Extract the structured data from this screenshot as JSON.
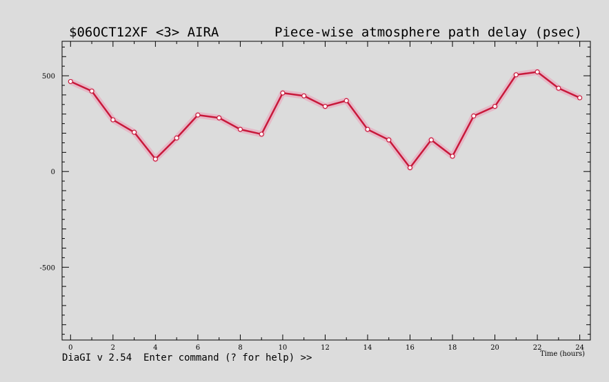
{
  "header": {
    "experiment": "$06OCT12XF <3>  AIRA",
    "plot_title": "Piece-wise atmosphere path delay (psec)"
  },
  "prompt": {
    "text": "DiaGI v 2.54  Enter command (? for help) >>"
  },
  "colors": {
    "background": "#dcdcdc",
    "series_line": "#c8183a",
    "series_band": "#e8a9bd",
    "marker_fill": "#ffffff"
  },
  "chart_data": {
    "type": "line",
    "title": "Piece-wise atmosphere path delay (psec)",
    "xlabel": "Time (hours)",
    "ylabel": "",
    "xlim": [
      -0.4,
      24.5
    ],
    "ylim": [
      -880,
      680
    ],
    "xticks": [
      0,
      2,
      4,
      6,
      8,
      10,
      12,
      14,
      16,
      18,
      20,
      22,
      24
    ],
    "yticks": [
      -500,
      0,
      500
    ],
    "grid": false,
    "series": [
      {
        "x": [
          0,
          1,
          2,
          3,
          4,
          5,
          6,
          7,
          8,
          9,
          10,
          11,
          12,
          13,
          14,
          15,
          16,
          17,
          18,
          19,
          20,
          21,
          22,
          23,
          24
        ],
        "values": [
          470,
          420,
          270,
          205,
          65,
          175,
          295,
          280,
          220,
          195,
          410,
          395,
          340,
          370,
          220,
          165,
          20,
          165,
          80,
          290,
          340,
          505,
          520,
          435,
          385
        ]
      }
    ]
  }
}
